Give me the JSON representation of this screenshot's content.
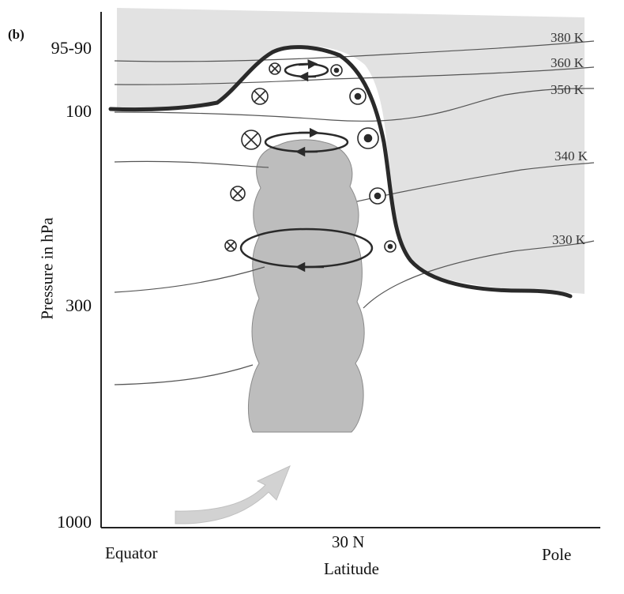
{
  "panel_label": "(b)",
  "y_axis": {
    "label": "Pressure in hPa",
    "ticks": [
      "95-90",
      "100",
      "300",
      "1000"
    ]
  },
  "x_axis": {
    "label": "Latitude",
    "ticks": [
      "Equator",
      "30 N",
      "Pole"
    ]
  },
  "isentropes": [
    "380 K",
    "360 K",
    "350 K",
    "340 K",
    "330 K"
  ],
  "colors": {
    "stratosphere_fill": "#e2e2e2",
    "convective_cloud": "#bdbdbd",
    "tropopause": "#2a2a2a",
    "isentrope_line": "#555555",
    "inflow_arrow": "#d2d2d2"
  },
  "icons": [
    "wind-into-page-icon",
    "wind-out-of-page-icon",
    "anticyclonic-circulation-icon",
    "inflow-arrow-icon"
  ]
}
